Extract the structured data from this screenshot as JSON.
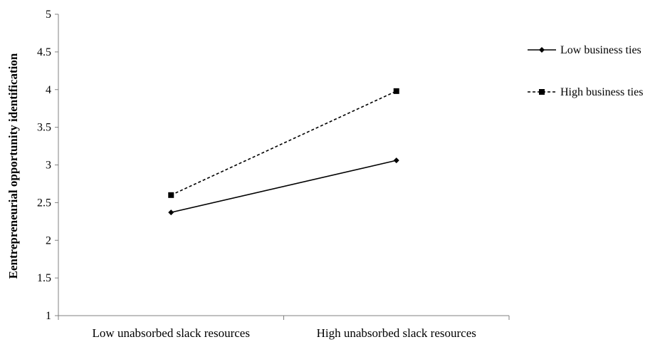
{
  "chart_data": {
    "type": "line",
    "title": "",
    "xlabel": "",
    "ylabel": "Eentrepreneurial opportunity identification",
    "categories": [
      "Low unabsorbed slack resources",
      "High unabsorbed slack resources"
    ],
    "ylim": [
      1,
      5
    ],
    "yticks": [
      "1",
      "1.5",
      "2",
      "2.5",
      "3",
      "3.5",
      "4",
      "4.5",
      "5"
    ],
    "grid": false,
    "legend_position": "right",
    "series": [
      {
        "name": "Low business ties",
        "values": [
          2.37,
          3.06
        ],
        "line_style": "solid",
        "marker": "diamond",
        "color": "#000000"
      },
      {
        "name": "High business ties",
        "values": [
          2.6,
          3.98
        ],
        "line_style": "dashed",
        "marker": "square",
        "color": "#000000"
      }
    ]
  }
}
